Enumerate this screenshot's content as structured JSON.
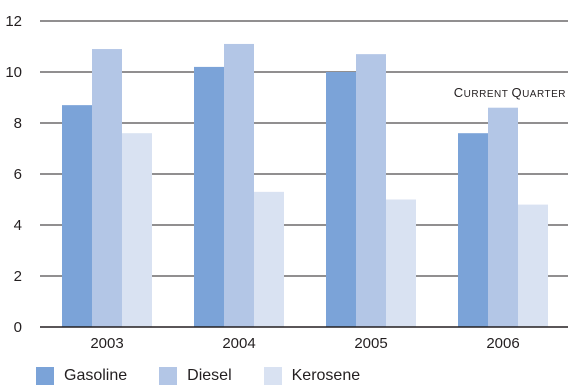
{
  "chart_data": {
    "type": "bar",
    "categories": [
      "2003",
      "2004",
      "2005",
      "2006"
    ],
    "series": [
      {
        "name": "Gasoline",
        "color": "#7ba3d8",
        "values": [
          8.7,
          10.2,
          10.0,
          7.6
        ]
      },
      {
        "name": "Diesel",
        "color": "#b3c6e6",
        "values": [
          10.9,
          11.1,
          10.7,
          8.6
        ]
      },
      {
        "name": "Kerosene",
        "color": "#d9e2f2",
        "values": [
          7.6,
          5.3,
          5.0,
          4.8
        ]
      }
    ],
    "yticks": [
      "0",
      "2",
      "4",
      "6",
      "8",
      "10",
      "12"
    ],
    "ylim": [
      0,
      12
    ],
    "annotation": "Current Quarter",
    "title": "",
    "xlabel": "",
    "ylabel": "",
    "grid": true,
    "legend_position": "bottom"
  }
}
